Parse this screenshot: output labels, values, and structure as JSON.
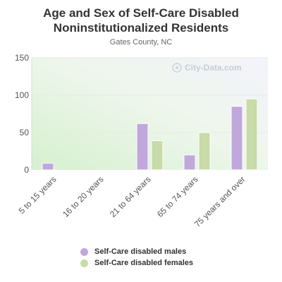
{
  "chart_data": {
    "type": "bar",
    "title_line1": "Age and Sex of Self-Care Disabled",
    "title_line2": "Noninstitutionalized Residents",
    "subtitle": "Gates County, NC",
    "watermark": "City-Data.com",
    "categories": [
      "5 to 15 years",
      "16 to 20 years",
      "21 to 64 years",
      "65 to 74 years",
      "75 years and over"
    ],
    "series": [
      {
        "name": "Self-Care disabled males",
        "color": "#c0a8dc",
        "values": [
          9,
          0,
          62,
          20,
          85
        ]
      },
      {
        "name": "Self-Care disabled females",
        "color": "#c8dba8",
        "values": [
          0,
          0,
          39,
          50,
          95
        ]
      }
    ],
    "yticks": [
      0,
      50,
      100,
      150
    ],
    "ylim": [
      0,
      150
    ],
    "grid": true,
    "legend_position": "bottom"
  }
}
